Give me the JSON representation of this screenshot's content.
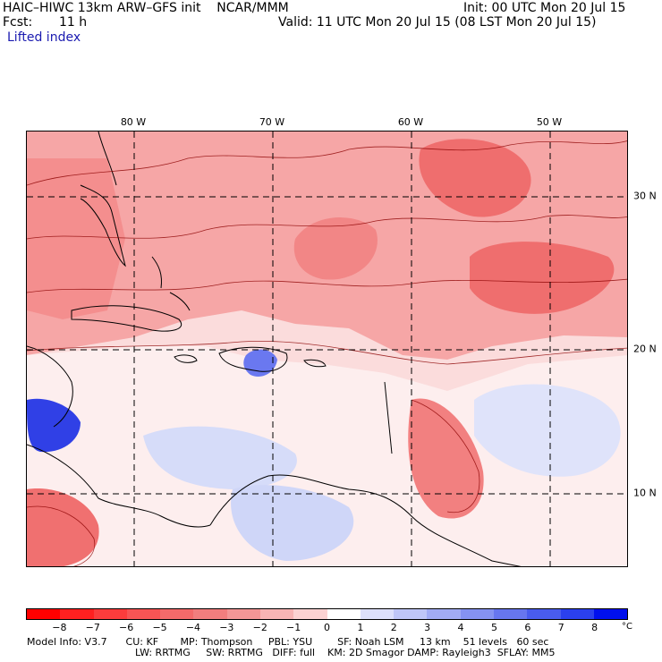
{
  "header": {
    "title": "HAIC–HIWC 13km ARW–GFS init    NCAR/MMM",
    "init": "Init: 00 UTC Mon 20 Jul 15",
    "fcst_label": "Fcst:",
    "fcst_value": "11 h",
    "valid": "Valid: 11 UTC Mon 20 Jul 15 (08 LST Mon 20 Jul 15)",
    "field": "Lifted index"
  },
  "map": {
    "lon_labels": [
      "80 W",
      "70 W",
      "60 W",
      "50 W"
    ],
    "lat_labels": [
      "30 N",
      "20 N",
      "10 N"
    ],
    "grid": "dashed",
    "colors": {
      "land_line": "#000000",
      "contour": "#8b0000",
      "strong_red": "#ef4a4a",
      "light_red": "#f8b8b8",
      "pale": "#fbe3e3",
      "light_blue": "#cfd6f8",
      "blue": "#5a6af0",
      "deep_blue": "#2430e0"
    }
  },
  "colorbar": {
    "ticks": [
      "−8",
      "−7",
      "−6",
      "−5",
      "−4",
      "−3",
      "−2",
      "−1",
      "0",
      "1",
      "2",
      "3",
      "4",
      "5",
      "6",
      "7",
      "8"
    ],
    "unit": "°C",
    "colors": [
      "#ff0000",
      "#ff2020",
      "#fb3c3c",
      "#f75454",
      "#f46a6a",
      "#f27e7e",
      "#f39696",
      "#f7b4b4",
      "#fbd2d2",
      "#ffffff",
      "#dde0fb",
      "#bfc6f7",
      "#a2acf4",
      "#8592f1",
      "#6776ef",
      "#495cee",
      "#2b40ee",
      "#0010ee"
    ]
  },
  "footer": {
    "line1": "Model Info: V3.7      CU: KF       MP: Thompson     PBL: YSU        SF: Noah LSM     13 km    51 levels   60 sec",
    "line2": "LW: RRTMG     SW: RRTMG   DIFF: full    KM: 2D Smagor DAMP: Rayleigh3  SFLAY: MM5"
  }
}
